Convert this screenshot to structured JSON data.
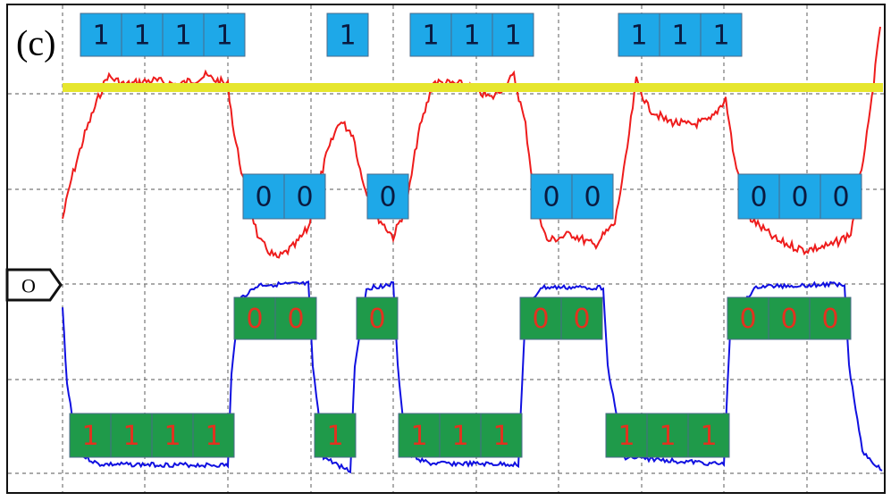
{
  "label": "(c)",
  "marker": "O",
  "upper_ones": [
    [
      "1",
      "1",
      "1",
      "1"
    ],
    [
      "1"
    ],
    [
      "1",
      "1",
      "1"
    ],
    [
      "1",
      "1",
      "1"
    ]
  ],
  "upper_zeros": [
    [
      "0",
      "0"
    ],
    [
      "0"
    ],
    [
      "0",
      "0"
    ],
    [
      "0",
      "0",
      "0"
    ]
  ],
  "lower_zeros": [
    [
      "0",
      "0"
    ],
    [
      "0"
    ],
    [
      "0",
      "0"
    ],
    [
      "0",
      "0",
      "0"
    ]
  ],
  "lower_ones": [
    [
      "1",
      "1",
      "1",
      "1"
    ],
    [
      "1"
    ],
    [
      "1",
      "1",
      "1"
    ],
    [
      "1",
      "1",
      "1"
    ]
  ]
}
